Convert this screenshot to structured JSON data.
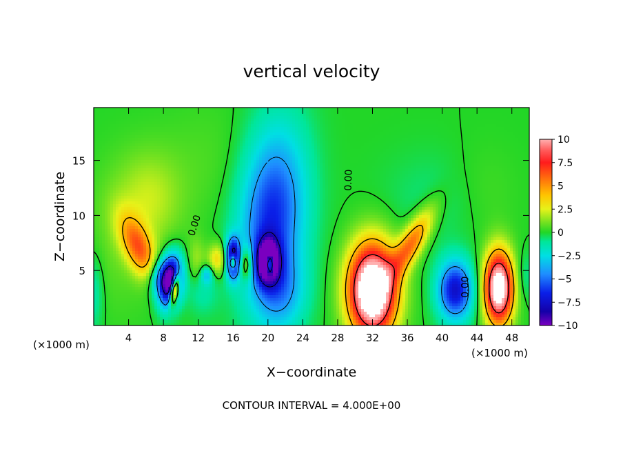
{
  "chart_data": {
    "type": "heatmap",
    "title": "vertical velocity",
    "xlabel": "X−coordinate",
    "ylabel": "Z−coordinate",
    "x_unit": "(×1000 m)",
    "z_unit": "(×1000 m)",
    "xlim": [
      0,
      50
    ],
    "ylim": [
      0,
      19.8
    ],
    "x_ticks": [
      4,
      8,
      12,
      16,
      20,
      24,
      28,
      32,
      36,
      40,
      44,
      48
    ],
    "x_tick_labels": [
      "4",
      "8",
      "12",
      "16",
      "20",
      "24",
      "28",
      "32",
      "36",
      "40",
      "44",
      "48"
    ],
    "y_ticks": [
      5,
      10,
      15
    ],
    "y_tick_labels": [
      "5",
      "10",
      "15"
    ],
    "colorbar": {
      "range": [
        -10,
        10
      ],
      "ticks": [
        10,
        7.5,
        5,
        2.5,
        0,
        -2.5,
        -5,
        -7.5,
        -10
      ],
      "tick_labels": [
        "10",
        "7.5",
        "5",
        "2.5",
        "0",
        "−2.5",
        "−5",
        "−7.5",
        "−10"
      ],
      "stops": [
        {
          "v": -10,
          "color": "#7a00c0"
        },
        {
          "v": -8.5,
          "color": "#1400a8"
        },
        {
          "v": -6.5,
          "color": "#0a1fe8"
        },
        {
          "v": -4.5,
          "color": "#1f8cff"
        },
        {
          "v": -2.5,
          "color": "#00dfe3"
        },
        {
          "v": -1.0,
          "color": "#00e69a"
        },
        {
          "v": 0,
          "color": "#22d626"
        },
        {
          "v": 1.2,
          "color": "#7ee31f"
        },
        {
          "v": 2.5,
          "color": "#e6f21a"
        },
        {
          "v": 4.0,
          "color": "#ffc400"
        },
        {
          "v": 5.5,
          "color": "#ff7d0a"
        },
        {
          "v": 7.5,
          "color": "#ff1c1c"
        },
        {
          "v": 8.8,
          "color": "#ff5a5a"
        },
        {
          "v": 10,
          "color": "#ffb0b0"
        }
      ]
    },
    "features": [
      {
        "x": 5.2,
        "z": 7.0,
        "sx": 1.1,
        "sz": 2.4,
        "rot": -0.55,
        "amp": 5.5
      },
      {
        "x": 6.5,
        "z": 11.5,
        "sx": 2.6,
        "sz": 3.0,
        "rot": 0.0,
        "amp": 1.8
      },
      {
        "x": 3.0,
        "z": 8.0,
        "sx": 3.0,
        "sz": 5.0,
        "rot": 0.0,
        "amp": 0.8
      },
      {
        "x": 8.8,
        "z": 4.0,
        "sx": 0.9,
        "sz": 1.6,
        "rot": 0.15,
        "amp": -12
      },
      {
        "x": 9.3,
        "z": 3.3,
        "sx": 0.35,
        "sz": 1.0,
        "rot": 0.2,
        "amp": 11
      },
      {
        "x": 7.3,
        "z": 4.5,
        "sx": 0.9,
        "sz": 1.2,
        "rot": 0.0,
        "amp": -3.5
      },
      {
        "x": 11.8,
        "z": 6.0,
        "sx": 0.7,
        "sz": 1.4,
        "rot": 0.0,
        "amp": 1.5
      },
      {
        "x": 12.5,
        "z": 3.0,
        "sx": 1.2,
        "sz": 1.5,
        "rot": 0.0,
        "amp": -1.2
      },
      {
        "x": 14.2,
        "z": 6.0,
        "sx": 0.8,
        "sz": 1.0,
        "rot": 0.0,
        "amp": 3.5
      },
      {
        "x": 16.0,
        "z": 6.1,
        "sx": 0.55,
        "sz": 1.2,
        "rot": 0.0,
        "amp": -10
      },
      {
        "x": 16.0,
        "z": 5.8,
        "sx": 0.25,
        "sz": 0.5,
        "rot": 0.0,
        "amp": 9
      },
      {
        "x": 17.5,
        "z": 5.6,
        "sx": 0.6,
        "sz": 1.1,
        "rot": 0.0,
        "amp": 4
      },
      {
        "x": 13.0,
        "z": 4.6,
        "sx": 0.5,
        "sz": 0.6,
        "rot": 0.0,
        "amp": -3
      },
      {
        "x": 20.5,
        "z": 10.0,
        "sx": 2.6,
        "sz": 5.5,
        "rot": 0.1,
        "amp": -6.5
      },
      {
        "x": 20.0,
        "z": 5.8,
        "sx": 0.9,
        "sz": 1.4,
        "rot": 0.0,
        "amp": -10
      },
      {
        "x": 20.2,
        "z": 5.6,
        "sx": 0.35,
        "sz": 0.7,
        "rot": 0.0,
        "amp": 10
      },
      {
        "x": 21.5,
        "z": 3.0,
        "sx": 2.0,
        "sz": 2.5,
        "rot": 0.0,
        "amp": -3
      },
      {
        "x": 32.0,
        "z": 3.2,
        "sx": 1.9,
        "sz": 2.9,
        "rot": 0.0,
        "amp": 15
      },
      {
        "x": 36.5,
        "z": 7.5,
        "sx": 0.9,
        "sz": 2.7,
        "rot": 0.65,
        "amp": 5.8
      },
      {
        "x": 41.5,
        "z": 3.2,
        "sx": 1.4,
        "sz": 1.9,
        "rot": 0.0,
        "amp": -7.5
      },
      {
        "x": 46.5,
        "z": 3.4,
        "sx": 1.15,
        "sz": 2.3,
        "rot": 0.0,
        "amp": 13
      },
      {
        "x": 40.0,
        "z": 11.5,
        "sx": 4.5,
        "sz": 3.0,
        "rot": 0.0,
        "amp": -0.8
      },
      {
        "x": 13.0,
        "z": 15.0,
        "sx": 4.0,
        "sz": 4.0,
        "rot": 0.0,
        "amp": 0.5
      },
      {
        "x": 0.0,
        "z": 3.0,
        "sx": 0.8,
        "sz": 2.5,
        "rot": 0.0,
        "amp": -1.5
      },
      {
        "x": 49.5,
        "z": 4.5,
        "sx": 0.8,
        "sz": 1.5,
        "rot": 0.0,
        "amp": -1.0
      },
      {
        "x": 44.5,
        "z": 12.0,
        "sx": 3.0,
        "sz": 3.0,
        "rot": 0.0,
        "amp": 0.7
      }
    ],
    "contour_labels": [
      {
        "text": "0.00",
        "x": 11.9,
        "z": 9.0,
        "angle": -72
      },
      {
        "text": "0.00",
        "x": 29.6,
        "z": 13.2,
        "angle": -88
      },
      {
        "text": "0.00",
        "x": 43.0,
        "z": 3.5,
        "angle": -90
      }
    ]
  },
  "footer": "CONTOUR INTERVAL = 4.000E+00"
}
